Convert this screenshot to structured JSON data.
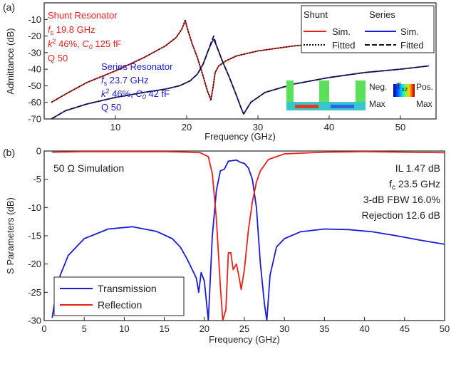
{
  "chart_data": [
    {
      "type": "line",
      "panel_label": "(a)",
      "xlabel": "Frequency (GHz)",
      "ylabel": "Admittance (dB)",
      "xlim": [
        0,
        55
      ],
      "ylim": [
        -70,
        0
      ],
      "xticks": [
        10,
        20,
        30,
        40,
        50
      ],
      "yticks": [
        -70,
        -60,
        -50,
        -40,
        -30,
        -20,
        -10
      ],
      "legend": {
        "placement": "top-right",
        "shunt_header": "Shunt",
        "series_header": "Series",
        "sim_label": "Sim.",
        "fitted_label": "Fitted"
      },
      "annotations": {
        "shunt": {
          "title": "Shunt Resonator",
          "fs_sym": "f",
          "fs_sub": "s",
          "fs_val": " 19.8 GHz",
          "k2": "k",
          "k2_sup": "2",
          "k2_val": " 46%, ",
          "c0": "C",
          "c0_sub": "0",
          "c0_val": " 125 fF",
          "q": "Q 50"
        },
        "series": {
          "title": "Series Resonator",
          "fs_sym": "f",
          "fs_sub": "s",
          "fs_val": " 23.7 GHz",
          "k2": "k",
          "k2_sup": "2",
          "k2_val": " 46%, ",
          "c0": "C",
          "c0_sub": "0",
          "c0_val": " 42 fF",
          "q": "Q 50"
        },
        "inset": {
          "neg": "Neg.",
          "max_left": "Max",
          "txz": "T",
          "txz_sub": "xz",
          "pos": "Pos.",
          "max_right": "Max"
        }
      },
      "series": [
        {
          "name": "Shunt Sim.",
          "color": "#e8211d",
          "style": "solid",
          "x": [
            1,
            3,
            6,
            10,
            14,
            17,
            18.5,
            19.3,
            19.8,
            20.2,
            20.8,
            21.5,
            22.3,
            22.9,
            23.4,
            23.7,
            24,
            24.5,
            25.5,
            27,
            30,
            35,
            40,
            45,
            50,
            54
          ],
          "y": [
            -60,
            -55,
            -48,
            -41,
            -33,
            -26,
            -21,
            -16,
            -11,
            -17,
            -25,
            -33,
            -44,
            -53,
            -58,
            -51,
            -42,
            -38,
            -35,
            -32,
            -29,
            -26,
            -24,
            -23,
            -22,
            -21
          ]
        },
        {
          "name": "Series Sim.",
          "color": "#1c1cd6",
          "style": "solid",
          "x": [
            1,
            3,
            6,
            10,
            14,
            17,
            19,
            20.5,
            21.5,
            22.3,
            23,
            23.5,
            23.8,
            24.2,
            25,
            26,
            27,
            27.6,
            28,
            29,
            31,
            35,
            40,
            45,
            50,
            54
          ],
          "y": [
            -70,
            -65,
            -61,
            -57,
            -54,
            -52,
            -50,
            -47,
            -43,
            -37,
            -29,
            -24,
            -22,
            -26,
            -35,
            -45,
            -56,
            -63,
            -67,
            -60,
            -54,
            -49,
            -45,
            -42,
            -40,
            -38
          ]
        },
        {
          "name": "Shunt Fitted",
          "color": "#111111",
          "style": "dotted",
          "x": [
            1,
            3,
            6,
            10,
            14,
            17,
            18.5,
            19.3,
            19.8,
            20.2,
            20.8,
            21.5,
            22.3,
            22.9,
            23.4,
            23.7,
            24,
            24.5,
            25.5,
            27,
            30,
            35,
            40,
            45,
            50,
            54
          ],
          "y": [
            -60,
            -55,
            -48,
            -41,
            -33,
            -26,
            -21,
            -16,
            -10,
            -17,
            -25,
            -33,
            -44,
            -53,
            -59,
            -51,
            -42,
            -38,
            -35,
            -32,
            -29,
            -26,
            -24,
            -23,
            -22,
            -21
          ]
        },
        {
          "name": "Series Fitted",
          "color": "#111111",
          "style": "dashed",
          "x": [
            1,
            3,
            6,
            10,
            14,
            17,
            19,
            20.5,
            21.5,
            22.3,
            23,
            23.5,
            23.8,
            24.2,
            25,
            26,
            27,
            27.6,
            28,
            29,
            31,
            35,
            40,
            45,
            50,
            54
          ],
          "y": [
            -70,
            -65,
            -61,
            -57,
            -54,
            -52,
            -50,
            -47,
            -43,
            -37,
            -29,
            -23,
            -20,
            -26,
            -35,
            -45,
            -56,
            -63,
            -67,
            -60,
            -54,
            -49,
            -45,
            -42,
            -40,
            -38
          ]
        }
      ]
    },
    {
      "type": "line",
      "panel_label": "(b)",
      "xlabel": "Frequency (GHz)",
      "ylabel": "S Parameters (dB)",
      "xlim": [
        0,
        50
      ],
      "ylim": [
        -30,
        0
      ],
      "xticks": [
        0,
        5,
        10,
        15,
        20,
        25,
        30,
        35,
        40,
        45,
        50
      ],
      "yticks": [
        -30,
        -25,
        -20,
        -15,
        -10,
        -5,
        0
      ],
      "legend": {
        "placement": "bottom-left"
      },
      "annotations": {
        "sim_label": "50 Ω Simulation",
        "il": "IL 1.47 dB",
        "fc_sym": "f",
        "fc_sub": "c",
        "fc_val": " 23.5 GHz",
        "fbw": "3-dB FBW 16.0%",
        "rejection": "Rejection 12.6 dB"
      },
      "series": [
        {
          "name": "Transmission",
          "color": "#1c1cd6",
          "x": [
            1,
            1.5,
            2,
            3,
            5,
            8,
            11,
            14,
            16,
            17,
            17.8,
            18.5,
            19,
            19.3,
            19.6,
            20,
            20.5,
            21,
            21.5,
            22,
            22.5,
            23,
            23.5,
            24,
            24.5,
            25,
            25.5,
            26,
            26.5,
            27,
            27.5,
            27.8,
            28.2,
            29,
            30,
            32,
            35,
            38,
            41,
            44,
            47,
            50
          ],
          "y": [
            -29.5,
            -25,
            -22,
            -18.5,
            -15.5,
            -13.8,
            -13.4,
            -14.2,
            -15.5,
            -17,
            -19,
            -21,
            -22.5,
            -25,
            -21.5,
            -23,
            -30,
            -15,
            -7,
            -3.5,
            -3.2,
            -1.8,
            -1.7,
            -1.6,
            -2.0,
            -2.2,
            -3,
            -5,
            -10,
            -20,
            -27,
            -30,
            -22,
            -17,
            -15.5,
            -14.3,
            -13.8,
            -13.9,
            -14.3,
            -15.0,
            -15.8,
            -16.5
          ]
        },
        {
          "name": "Reflection",
          "color": "#e8211d",
          "x": [
            1,
            5,
            10,
            15,
            18,
            19.5,
            20.5,
            21,
            21.5,
            22,
            22.3,
            22.7,
            23,
            23.3,
            23.6,
            24,
            24.3,
            24.6,
            25,
            25.5,
            26,
            26.5,
            27,
            28,
            30,
            35,
            40,
            45,
            50
          ],
          "y": [
            -0.2,
            -0.1,
            -0.1,
            -0.1,
            -0.2,
            -0.3,
            -1,
            -4,
            -12,
            -24,
            -30,
            -28,
            -18,
            -18,
            -21,
            -20,
            -22,
            -24.5,
            -21,
            -14,
            -9,
            -5.5,
            -3.5,
            -1.5,
            -0.5,
            -0.2,
            -0.1,
            -0.2,
            -0.3
          ]
        }
      ]
    }
  ]
}
